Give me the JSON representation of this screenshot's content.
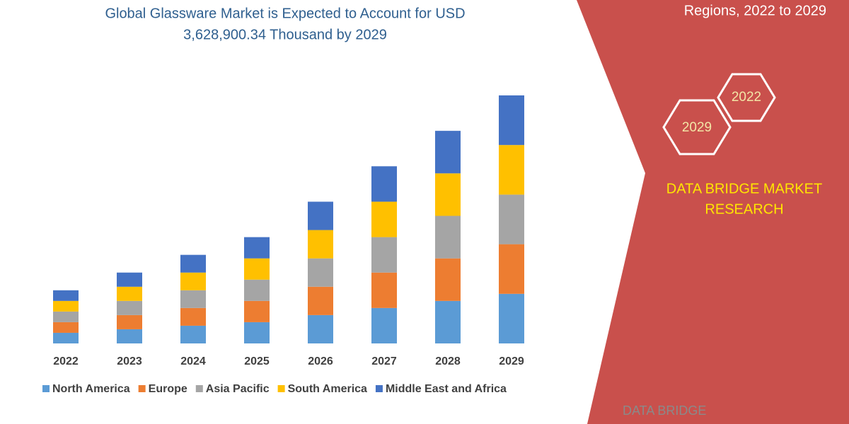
{
  "chart_data": {
    "type": "stacked-bar",
    "title": [
      "Global Glassware Market is Expected to Account for USD",
      "3,628,900.34 Thousand by 2029"
    ],
    "categories": [
      "2022",
      "2023",
      "2024",
      "2025",
      "2026",
      "2027",
      "2028",
      "2029"
    ],
    "series": [
      {
        "name": "North America",
        "color": "#5b9bd5",
        "values": [
          15,
          20,
          25,
          30,
          40,
          50,
          60,
          70
        ]
      },
      {
        "name": "Europe",
        "color": "#ed7d31",
        "values": [
          15,
          20,
          25,
          30,
          40,
          50,
          60,
          70
        ]
      },
      {
        "name": "Asia Pacific",
        "color": "#a5a5a5",
        "values": [
          15,
          20,
          25,
          30,
          40,
          50,
          60,
          70
        ]
      },
      {
        "name": "South America",
        "color": "#ffc000",
        "values": [
          15,
          20,
          25,
          30,
          40,
          50,
          60,
          70
        ]
      },
      {
        "name": "Middle East and Africa",
        "color": "#4472c4",
        "values": [
          15,
          20,
          25,
          30,
          40,
          50,
          60,
          70
        ]
      }
    ]
  },
  "side_panel": {
    "heading": "Regions, 2022 to 2029",
    "hexagons": [
      "2022",
      "2029"
    ],
    "brand": [
      "DATA BRIDGE MARKET",
      "RESEARCH"
    ],
    "logo": "DATA BRIDGE"
  }
}
